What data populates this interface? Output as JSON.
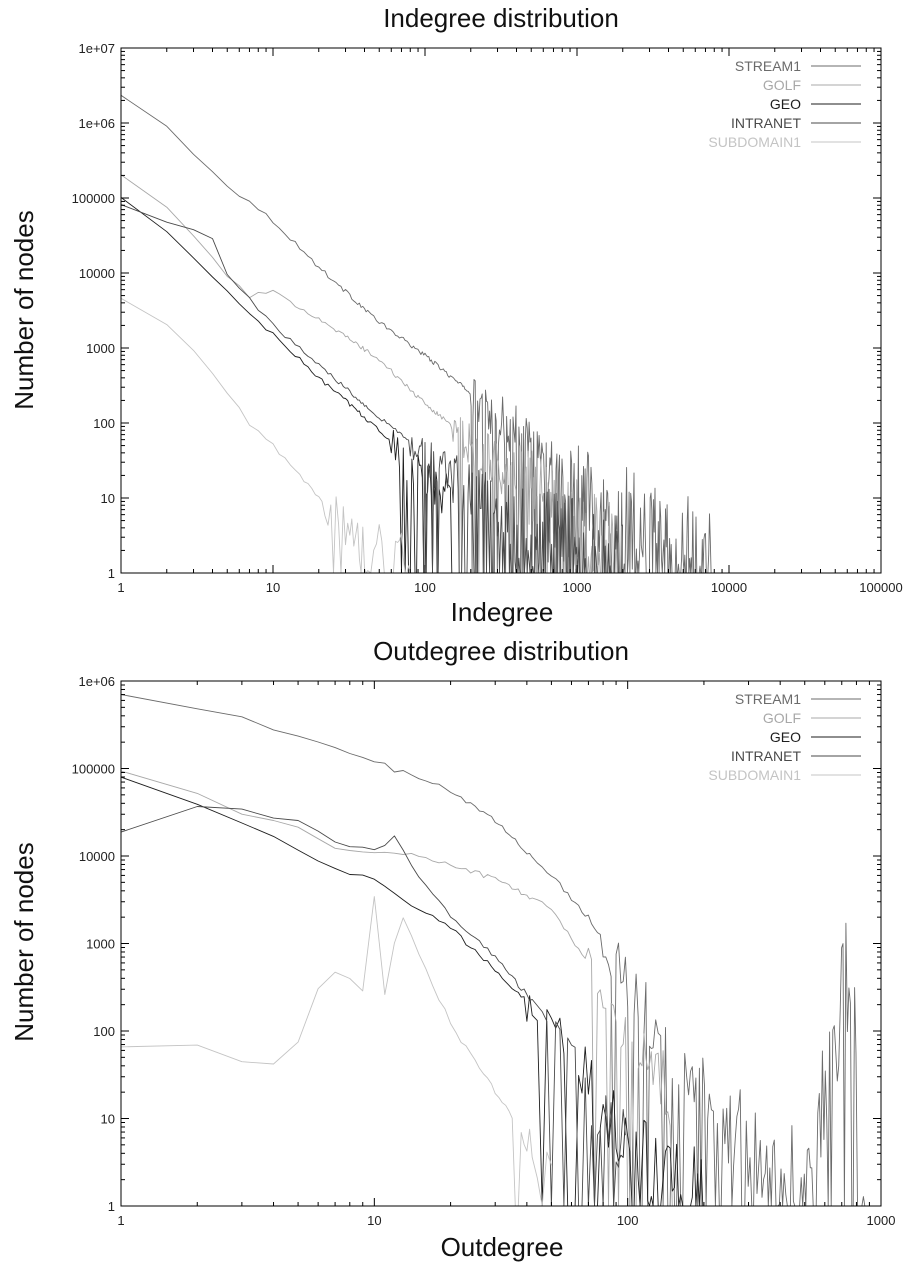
{
  "legend_colors": {
    "STREAM1": "#6b6b6b",
    "GOLF": "#a8a8a8",
    "GEO": "#1e1e1e",
    "INTRANET": "#4a4a4a",
    "SUBDOMAIN1": "#c4c4c4"
  },
  "chart_data": [
    {
      "type": "line",
      "title": "Indegree distribution",
      "xlabel": "Indegree",
      "ylabel": "Number of nodes",
      "xscale": "log",
      "yscale": "log",
      "xlim": [
        1,
        100000
      ],
      "ylim": [
        1,
        10000000
      ],
      "xticks": [
        "1",
        "10",
        "100",
        "1000",
        "10000",
        "100000"
      ],
      "yticks": [
        "1",
        "10",
        "100",
        "1000",
        "10000",
        "100000",
        "1e+06",
        "1e+07"
      ],
      "grid": false,
      "legend_position": "top-right",
      "series": [
        {
          "name": "STREAM1",
          "noisy_from": 200,
          "x": [
            1,
            2,
            3,
            5,
            10,
            20,
            50,
            100,
            200,
            500,
            1000,
            2000,
            3000,
            5000,
            8000
          ],
          "y": [
            2300000,
            900000,
            400000,
            150000,
            50000,
            12000,
            2200,
            800,
            250,
            50,
            15,
            6,
            3,
            2,
            1
          ]
        },
        {
          "name": "GOLF",
          "noisy_from": 150,
          "x": [
            1,
            2,
            3,
            5,
            7,
            10,
            15,
            20,
            50,
            100,
            200,
            500,
            1000,
            2000
          ],
          "y": [
            200000,
            80000,
            30000,
            9000,
            5000,
            5500,
            3500,
            2500,
            700,
            180,
            60,
            15,
            5,
            2
          ]
        },
        {
          "name": "GEO",
          "noisy_from": 60,
          "x": [
            1,
            2,
            3,
            5,
            10,
            15,
            20,
            30,
            50,
            100,
            150
          ],
          "y": [
            100000,
            35000,
            16000,
            5500,
            1500,
            700,
            400,
            200,
            80,
            20,
            8
          ]
        },
        {
          "name": "INTRANET",
          "noisy_from": 80,
          "x": [
            1,
            2,
            3,
            4,
            5,
            10,
            20,
            50,
            100,
            200,
            500,
            1000,
            2000
          ],
          "y": [
            80000,
            50000,
            40000,
            30000,
            10000,
            2000,
            600,
            120,
            40,
            12,
            4,
            2,
            1
          ]
        },
        {
          "name": "SUBDOMAIN1",
          "noisy_from": 22,
          "x": [
            1,
            2,
            3,
            5,
            7,
            10,
            15,
            20,
            30,
            50,
            80
          ],
          "y": [
            4500,
            2000,
            900,
            250,
            100,
            50,
            20,
            10,
            5,
            2,
            1
          ]
        }
      ]
    },
    {
      "type": "line",
      "title": "Outdegree distribution",
      "xlabel": "Outdegree",
      "ylabel": "Number of nodes",
      "xscale": "log",
      "yscale": "log",
      "xlim": [
        1,
        1000
      ],
      "ylim": [
        1,
        1000000
      ],
      "xticks": [
        "1",
        "10",
        "100",
        "1000"
      ],
      "yticks": [
        "1",
        "10",
        "100",
        "1000",
        "10000",
        "100000",
        "1e+06"
      ],
      "grid": false,
      "legend_position": "top-right",
      "series": [
        {
          "name": "STREAM1",
          "noisy_from": 80,
          "x": [
            1,
            2,
            3,
            5,
            10,
            20,
            30,
            50,
            70,
            100,
            150,
            200,
            300,
            400,
            500,
            750,
            900
          ],
          "y": [
            750000,
            500000,
            370000,
            230000,
            120000,
            55000,
            25000,
            6000,
            2000,
            400,
            60,
            20,
            6,
            3,
            2,
            700,
            1
          ]
        },
        {
          "name": "GOLF",
          "noisy_from": 70,
          "x": [
            1,
            2,
            3,
            5,
            7,
            10,
            15,
            20,
            30,
            50,
            70,
            100,
            150
          ],
          "y": [
            100000,
            50000,
            30000,
            20000,
            13000,
            11000,
            10000,
            8000,
            5500,
            2500,
            600,
            100,
            20
          ]
        },
        {
          "name": "GEO",
          "noisy_from": 40,
          "x": [
            1,
            2,
            3,
            5,
            8,
            10,
            15,
            20,
            30,
            50,
            70,
            100,
            200
          ],
          "y": [
            85000,
            40000,
            25000,
            12000,
            6000,
            5500,
            2500,
            1500,
            500,
            120,
            30,
            5,
            2
          ]
        },
        {
          "name": "INTRANET",
          "noisy_from": 50,
          "x": [
            1,
            2,
            3,
            5,
            7,
            10,
            12,
            15,
            20,
            30,
            50,
            70,
            100
          ],
          "y": [
            20000,
            35000,
            33000,
            25000,
            14000,
            12000,
            16000,
            6000,
            2000,
            700,
            120,
            20,
            5
          ]
        },
        {
          "name": "SUBDOMAIN1",
          "noisy_from": 35,
          "x": [
            1,
            2,
            3,
            4,
            5,
            6,
            7,
            9,
            10,
            11,
            12,
            13,
            15,
            20,
            30,
            40,
            50
          ],
          "y": [
            70,
            70,
            45,
            40,
            70,
            300,
            500,
            300,
            3500,
            250,
            1000,
            2000,
            800,
            120,
            20,
            6,
            2
          ]
        }
      ]
    }
  ]
}
